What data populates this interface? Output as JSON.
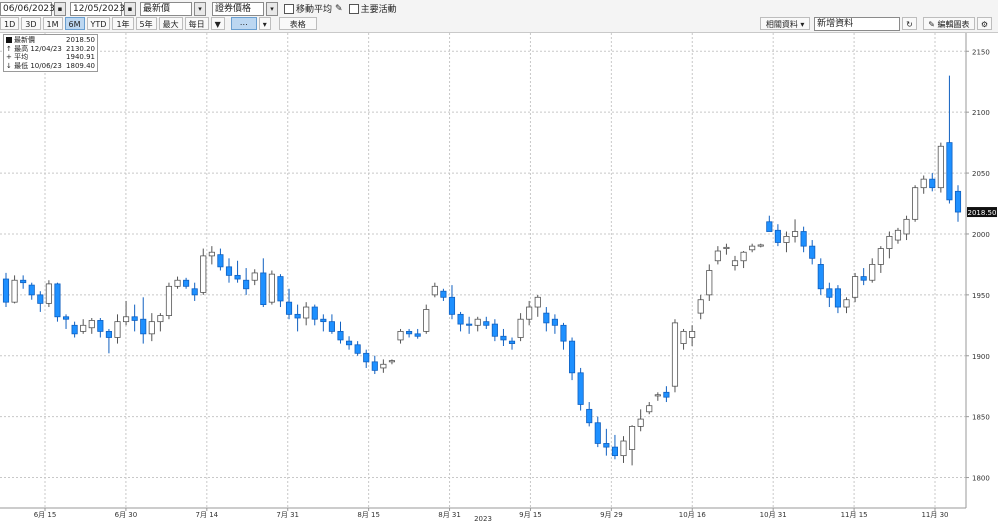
{
  "toolbar": {
    "start_date": "06/06/2023",
    "end_date": "12/05/2023",
    "field_a": "最新價",
    "field_b": "證券價格",
    "moving_avg_label": "移動平均",
    "key_events_label": "主要活動",
    "periods": [
      "1D",
      "3D",
      "1M",
      "6M",
      "YTD",
      "1年",
      "5年",
      "最大",
      "每日"
    ],
    "active_period": "6M",
    "table_label": "表格",
    "related_data_label": "相關資料",
    "news_label": "新增資料",
    "edit_label": "編輯圖表"
  },
  "legend": {
    "rows": [
      {
        "icon": "square-icon",
        "label": "最新價",
        "date": "",
        "value": "2018.50"
      },
      {
        "icon": "up-arrow-icon",
        "label": "最高",
        "date": "12/04/23",
        "value": "2130.20"
      },
      {
        "icon": "plus-icon",
        "label": "平均",
        "date": "",
        "value": "1940.91"
      },
      {
        "icon": "down-arrow-icon",
        "label": "最低",
        "date": "10/06/23",
        "value": "1809.40"
      }
    ]
  },
  "chart_data": {
    "type": "candlestick",
    "colors": {
      "up_fill": "#ffffff",
      "up_stroke": "#555555",
      "down_fill": "#1e90ff",
      "down_stroke": "#1060c0"
    },
    "ylim": [
      1775,
      2165
    ],
    "yticks": [
      1800,
      1850,
      1900,
      1950,
      2000,
      2050,
      2100,
      2150
    ],
    "xticks": [
      "6月 15",
      "6月 30",
      "7月 14",
      "7月 31",
      "8月 15",
      "8月 31",
      "9月 15",
      "9月 29",
      "10月 16",
      "10月 31",
      "11月 15",
      "11月 30"
    ],
    "xaxis_year": "2023",
    "last_price_label": "2018.50",
    "candles": [
      [
        1963,
        1968,
        1940,
        1944
      ],
      [
        1944,
        1966,
        1943,
        1962
      ],
      [
        1962,
        1966,
        1955,
        1960
      ],
      [
        1958,
        1960,
        1946,
        1950
      ],
      [
        1950,
        1953,
        1936,
        1943
      ],
      [
        1943,
        1962,
        1940,
        1959
      ],
      [
        1959,
        1960,
        1928,
        1932
      ],
      [
        1932,
        1934,
        1922,
        1930
      ],
      [
        1925,
        1928,
        1915,
        1918
      ],
      [
        1920,
        1930,
        1918,
        1925
      ],
      [
        1923,
        1931,
        1918,
        1929
      ],
      [
        1929,
        1931,
        1915,
        1920
      ],
      [
        1920,
        1922,
        1902,
        1915
      ],
      [
        1915,
        1934,
        1910,
        1928
      ],
      [
        1928,
        1945,
        1925,
        1932
      ],
      [
        1932,
        1942,
        1920,
        1929
      ],
      [
        1930,
        1948,
        1910,
        1918
      ],
      [
        1918,
        1935,
        1912,
        1928
      ],
      [
        1928,
        1935,
        1920,
        1933
      ],
      [
        1933,
        1960,
        1930,
        1957
      ],
      [
        1957,
        1965,
        1955,
        1962
      ],
      [
        1962,
        1964,
        1955,
        1957
      ],
      [
        1955,
        1960,
        1945,
        1950
      ],
      [
        1952,
        1988,
        1950,
        1982
      ],
      [
        1982,
        1990,
        1975,
        1985
      ],
      [
        1983,
        1988,
        1970,
        1973
      ],
      [
        1973,
        1980,
        1960,
        1966
      ],
      [
        1966,
        1978,
        1960,
        1963
      ],
      [
        1962,
        1972,
        1950,
        1955
      ],
      [
        1962,
        1971,
        1958,
        1968
      ],
      [
        1968,
        1980,
        1940,
        1942
      ],
      [
        1944,
        1970,
        1942,
        1967
      ],
      [
        1965,
        1967,
        1940,
        1945
      ],
      [
        1944,
        1955,
        1930,
        1934
      ],
      [
        1934,
        1942,
        1920,
        1931
      ],
      [
        1931,
        1944,
        1925,
        1940
      ],
      [
        1940,
        1942,
        1925,
        1930
      ],
      [
        1930,
        1934,
        1920,
        1928
      ],
      [
        1928,
        1934,
        1918,
        1920
      ],
      [
        1920,
        1928,
        1910,
        1913
      ],
      [
        1912,
        1916,
        1905,
        1909
      ],
      [
        1909,
        1912,
        1900,
        1902
      ],
      [
        1902,
        1905,
        1890,
        1895
      ],
      [
        1895,
        1900,
        1885,
        1888
      ],
      [
        1890,
        1897,
        1886,
        1893
      ],
      [
        1895,
        1897,
        1893,
        1896
      ],
      [
        1913,
        1922,
        1910,
        1920
      ],
      [
        1920,
        1922,
        1915,
        1918
      ],
      [
        1918,
        1922,
        1914,
        1916
      ],
      [
        1920,
        1942,
        1918,
        1938
      ],
      [
        1950,
        1960,
        1948,
        1957
      ],
      [
        1953,
        1955,
        1945,
        1948
      ],
      [
        1948,
        1958,
        1930,
        1934
      ],
      [
        1934,
        1936,
        1920,
        1926
      ],
      [
        1926,
        1932,
        1918,
        1925
      ],
      [
        1925,
        1932,
        1920,
        1930
      ],
      [
        1928,
        1932,
        1922,
        1925
      ],
      [
        1926,
        1930,
        1912,
        1916
      ],
      [
        1916,
        1922,
        1908,
        1913
      ],
      [
        1912,
        1915,
        1905,
        1910
      ],
      [
        1915,
        1935,
        1912,
        1930
      ],
      [
        1930,
        1945,
        1925,
        1940
      ],
      [
        1940,
        1950,
        1932,
        1948
      ],
      [
        1935,
        1940,
        1920,
        1927
      ],
      [
        1930,
        1934,
        1918,
        1925
      ],
      [
        1925,
        1927,
        1905,
        1912
      ],
      [
        1912,
        1915,
        1880,
        1886
      ],
      [
        1886,
        1890,
        1855,
        1860
      ],
      [
        1856,
        1862,
        1842,
        1845
      ],
      [
        1845,
        1850,
        1825,
        1828
      ],
      [
        1828,
        1840,
        1818,
        1825
      ],
      [
        1825,
        1835,
        1815,
        1818
      ],
      [
        1818,
        1834,
        1812,
        1830
      ],
      [
        1823,
        1843,
        1810,
        1842
      ],
      [
        1842,
        1856,
        1838,
        1848
      ],
      [
        1854,
        1862,
        1852,
        1859
      ],
      [
        1867,
        1870,
        1863,
        1868
      ],
      [
        1870,
        1875,
        1862,
        1866
      ],
      [
        1875,
        1930,
        1870,
        1927
      ],
      [
        1910,
        1922,
        1905,
        1920
      ],
      [
        1915,
        1925,
        1908,
        1920
      ],
      [
        1935,
        1950,
        1930,
        1946
      ],
      [
        1950,
        1975,
        1945,
        1970
      ],
      [
        1978,
        1990,
        1975,
        1986
      ],
      [
        1988,
        1992,
        1983,
        1989
      ],
      [
        1974,
        1982,
        1970,
        1978
      ],
      [
        1978,
        1986,
        1972,
        1985
      ],
      [
        1987,
        1992,
        1985,
        1990
      ],
      [
        1990,
        1992,
        1989,
        1991
      ],
      [
        2010,
        2015,
        2002,
        2002
      ],
      [
        2003,
        2008,
        1990,
        1993
      ],
      [
        1993,
        2002,
        1985,
        1998
      ],
      [
        1998,
        2012,
        1993,
        2002
      ],
      [
        2002,
        2006,
        1985,
        1990
      ],
      [
        1990,
        1995,
        1975,
        1980
      ],
      [
        1975,
        1980,
        1950,
        1955
      ],
      [
        1955,
        1960,
        1940,
        1948
      ],
      [
        1955,
        1958,
        1935,
        1940
      ],
      [
        1940,
        1948,
        1935,
        1946
      ],
      [
        1948,
        1968,
        1944,
        1965
      ],
      [
        1965,
        1972,
        1958,
        1962
      ],
      [
        1962,
        1980,
        1960,
        1975
      ],
      [
        1975,
        1990,
        1968,
        1988
      ],
      [
        1988,
        2002,
        1980,
        1998
      ],
      [
        1995,
        2005,
        1992,
        2003
      ],
      [
        2000,
        2015,
        1995,
        2012
      ],
      [
        2012,
        2040,
        2010,
        2038
      ],
      [
        2038,
        2048,
        2033,
        2045
      ],
      [
        2045,
        2050,
        2035,
        2038
      ],
      [
        2038,
        2075,
        2034,
        2072
      ],
      [
        2075,
        2130,
        2025,
        2028
      ],
      [
        2035,
        2040,
        2010,
        2018
      ]
    ]
  }
}
